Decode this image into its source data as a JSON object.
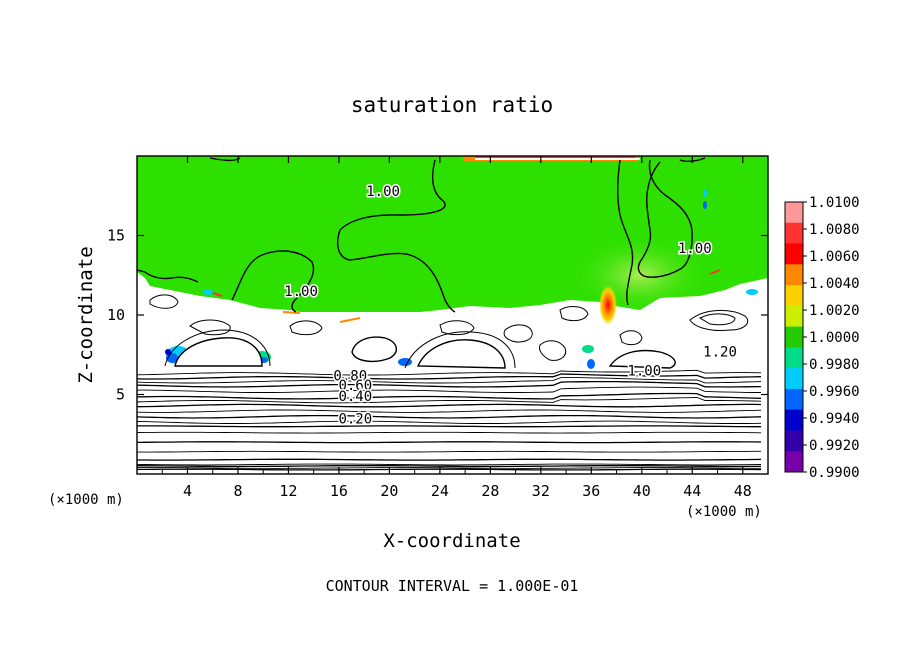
{
  "chart_data": {
    "type": "heatmap",
    "title": "saturation ratio",
    "xlabel": "X-coordinate",
    "ylabel": "Z-coordinate",
    "x_unit_left": "(×1000 m)",
    "x_unit_right": "(×1000 m)",
    "xlim": [
      0,
      50
    ],
    "ylim": [
      0,
      20
    ],
    "x_ticks": [
      "4",
      "8",
      "12",
      "16",
      "20",
      "24",
      "28",
      "32",
      "36",
      "40",
      "44",
      "48"
    ],
    "y_ticks": [
      "5",
      "10",
      "15"
    ],
    "footer": "CONTOUR INTERVAL = 1.000E-01",
    "colorbar": {
      "labels": [
        "1.0100",
        "1.0080",
        "1.0060",
        "1.0040",
        "1.0020",
        "1.0000",
        "0.9980",
        "0.9960",
        "0.9940",
        "0.9920",
        "0.9900"
      ],
      "colors": [
        "#ff9999",
        "#ff3333",
        "#ff0000",
        "#ff8800",
        "#ffd000",
        "#ccee00",
        "#22cc00",
        "#00dd88",
        "#00ccff",
        "#0066ff",
        "#0000cc",
        "#3300aa",
        "#7700aa"
      ]
    },
    "background_color": "#2ee000",
    "contour_labels": [
      {
        "text": "1.00",
        "x": 19.5,
        "z": 17.8
      },
      {
        "text": "1.00",
        "x": 44.2,
        "z": 14.2
      },
      {
        "text": "1.00",
        "x": 13.0,
        "z": 11.5
      },
      {
        "text": "1.20",
        "x": 46.2,
        "z": 7.7
      },
      {
        "text": "1.00",
        "x": 40.2,
        "z": 6.5
      },
      {
        "text": "0.80",
        "x": 16.9,
        "z": 6.2
      },
      {
        "text": "0.60",
        "x": 17.3,
        "z": 5.6
      },
      {
        "text": "0.40",
        "x": 17.3,
        "z": 4.9
      },
      {
        "text": "0.20",
        "x": 17.3,
        "z": 3.5
      }
    ],
    "stratified_levels": [
      0.28,
      0.38,
      0.5,
      0.6,
      0.9,
      1.4,
      2.0,
      2.6,
      3.0,
      3.25,
      3.6,
      3.95,
      4.3,
      4.55,
      4.8,
      5.2,
      5.55,
      5.8,
      6.05,
      6.3
    ]
  }
}
